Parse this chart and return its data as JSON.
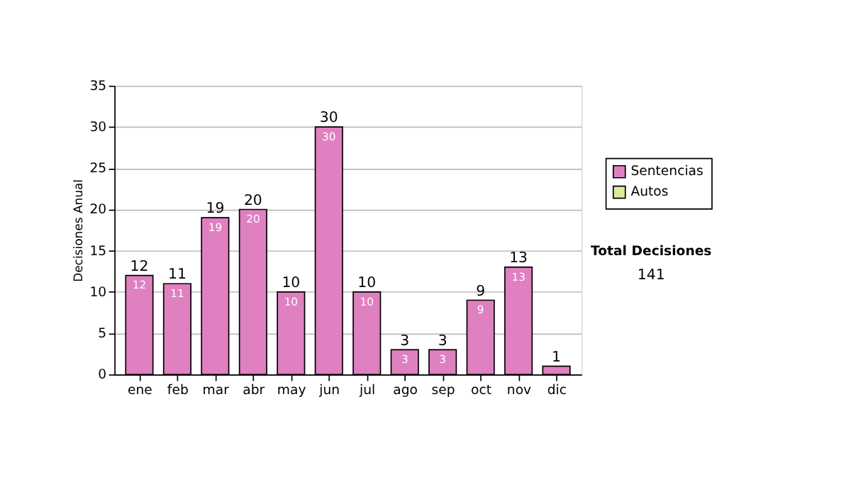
{
  "chart_data": {
    "type": "bar",
    "ylabel": "Decisiones Anual",
    "categories": [
      "ene",
      "feb",
      "mar",
      "abr",
      "may",
      "jun",
      "jul",
      "ago",
      "sep",
      "oct",
      "nov",
      "dic"
    ],
    "series": [
      {
        "name": "Sentencias",
        "color": "#df80c0",
        "values": [
          12,
          11,
          19,
          20,
          10,
          30,
          10,
          3,
          3,
          9,
          13,
          1
        ],
        "value_labels": [
          "12",
          "11",
          "19",
          "20",
          "10",
          "30",
          "10",
          "3",
          "3",
          "9",
          "13",
          null
        ]
      },
      {
        "name": "Autos",
        "color": "#d8ec9c",
        "values": [
          null,
          null,
          null,
          null,
          null,
          null,
          null,
          null,
          null,
          null,
          null,
          null
        ]
      }
    ],
    "stacked": true,
    "totals": [
      "12",
      "11",
      "19",
      "20",
      "10",
      "30",
      "10",
      "3",
      "3",
      "9",
      "13",
      "1"
    ],
    "ylim": [
      0,
      35
    ],
    "yticks": [
      0,
      5,
      10,
      15,
      20,
      25,
      30,
      35
    ],
    "grid": "y",
    "legend": "right",
    "annotations": [
      "Total Decisiones",
      "141"
    ]
  }
}
